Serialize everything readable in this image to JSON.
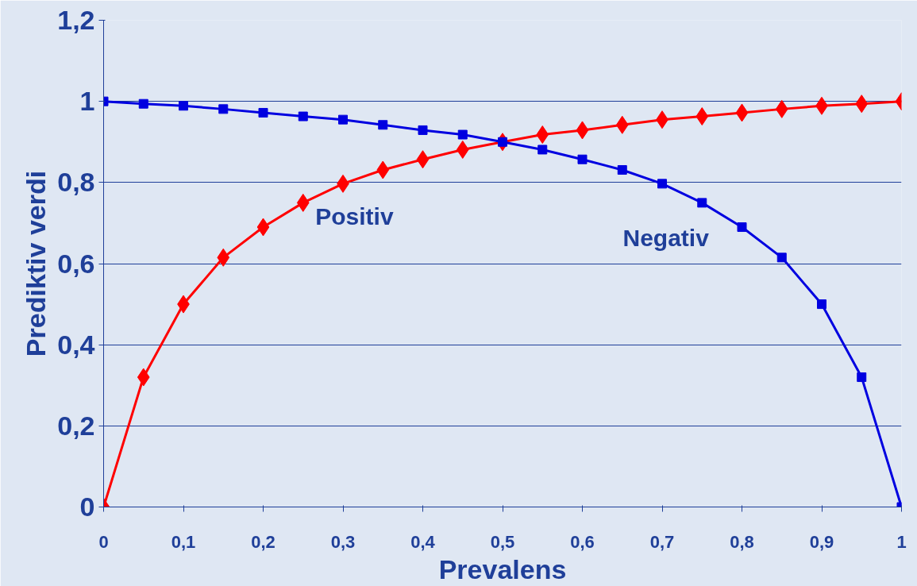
{
  "chart_data": {
    "type": "line",
    "xlabel": "Prevalens",
    "ylabel": "Prediktiv verdi",
    "x": [
      0,
      0.05,
      0.1,
      0.15,
      0.2,
      0.25,
      0.3,
      0.35,
      0.4,
      0.45,
      0.5,
      0.55,
      0.6,
      0.65,
      0.7,
      0.75,
      0.8,
      0.85,
      0.9,
      0.95,
      1
    ],
    "series": [
      {
        "name": "Positiv",
        "color": "#ff0000",
        "marker": "diamond",
        "values": [
          0,
          0.32,
          0.5,
          0.615,
          0.69,
          0.75,
          0.797,
          0.831,
          0.857,
          0.881,
          0.9,
          0.918,
          0.929,
          0.942,
          0.955,
          0.963,
          0.972,
          0.981,
          0.989,
          0.994,
          1
        ]
      },
      {
        "name": "Negativ",
        "color": "#0000e0",
        "marker": "square",
        "values": [
          1,
          0.994,
          0.989,
          0.981,
          0.972,
          0.963,
          0.955,
          0.942,
          0.929,
          0.918,
          0.9,
          0.881,
          0.857,
          0.831,
          0.797,
          0.75,
          0.69,
          0.615,
          0.5,
          0.32,
          0
        ]
      }
    ],
    "xlim": [
      0,
      1
    ],
    "ylim": [
      0,
      1.2
    ],
    "xticks": [
      0,
      {
        "value": 0.1,
        "label": "0,1"
      },
      {
        "value": 0.2,
        "label": "0,2"
      },
      {
        "value": 0.3,
        "label": "0,3"
      },
      {
        "value": 0.4,
        "label": "0,4"
      },
      {
        "value": 0.5,
        "label": "0,5"
      },
      {
        "value": 0.6,
        "label": "0,6"
      },
      {
        "value": 0.7,
        "label": "0,7"
      },
      {
        "value": 0.8,
        "label": "0,8"
      },
      {
        "value": 0.9,
        "label": "0,9"
      },
      1
    ],
    "yticks": [
      0,
      {
        "value": 0.2,
        "label": "0,2"
      },
      {
        "value": 0.4,
        "label": "0,4"
      },
      {
        "value": 0.6,
        "label": "0,6"
      },
      {
        "value": 0.8,
        "label": "0,8"
      },
      1,
      {
        "value": 1.2,
        "label": "1,2"
      }
    ],
    "grid": "y",
    "line_style": "solid"
  }
}
